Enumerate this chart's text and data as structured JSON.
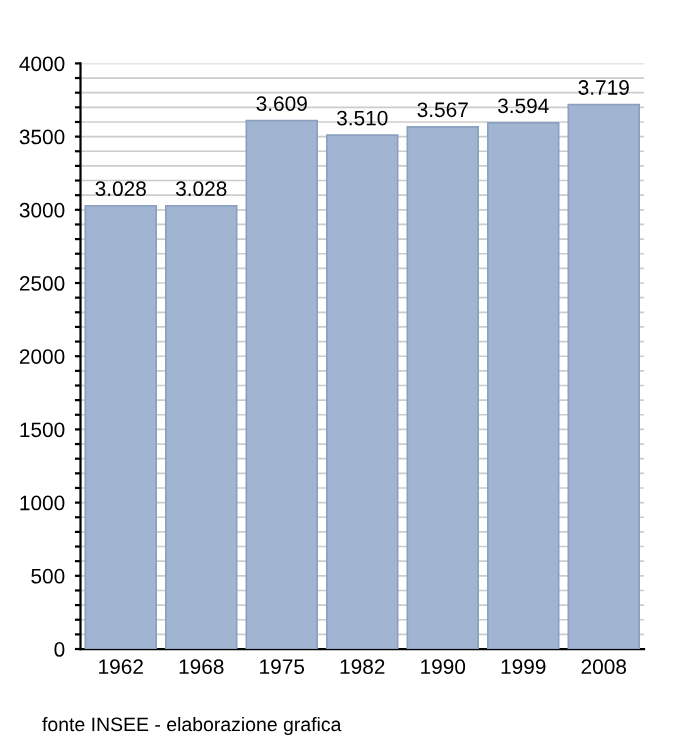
{
  "chart_data": {
    "type": "bar",
    "categories": [
      "1962",
      "1968",
      "1975",
      "1982",
      "1990",
      "1999",
      "2008"
    ],
    "values": [
      3028,
      3028,
      3609,
      3510,
      3567,
      3594,
      3719
    ],
    "value_labels": [
      "3.028",
      "3.028",
      "3.609",
      "3.510",
      "3.567",
      "3.594",
      "3.719"
    ],
    "color": "#a1b5d2",
    "ylim": [
      0,
      4000
    ],
    "yticks": [
      0,
      {
        "value": 100,
        "label": null
      },
      {
        "value": 200,
        "label": null
      },
      {
        "value": 300,
        "label": null
      },
      {
        "value": 400,
        "label": null
      },
      500,
      {
        "value": 600,
        "label": null
      },
      {
        "value": 700,
        "label": null
      },
      {
        "value": 800,
        "label": null
      },
      {
        "value": 900,
        "label": null
      },
      1000,
      {
        "value": 1100,
        "label": null
      },
      {
        "value": 1200,
        "label": null
      },
      {
        "value": 1300,
        "label": null
      },
      {
        "value": 1400,
        "label": null
      },
      1500,
      {
        "value": 1600,
        "label": null
      },
      {
        "value": 1700,
        "label": null
      },
      {
        "value": 1800,
        "label": null
      },
      {
        "value": 1900,
        "label": null
      },
      2000,
      {
        "value": 2100,
        "label": null
      },
      {
        "value": 2200,
        "label": null
      },
      {
        "value": 2300,
        "label": null
      },
      {
        "value": 2400,
        "label": null
      },
      2500,
      {
        "value": 2600,
        "label": null
      },
      {
        "value": 2700,
        "label": null
      },
      {
        "value": 2800,
        "label": null
      },
      {
        "value": 2900,
        "label": null
      },
      3000,
      {
        "value": 3100,
        "label": null
      },
      {
        "value": 3200,
        "label": null
      },
      {
        "value": 3300,
        "label": null
      },
      {
        "value": 3400,
        "label": null
      },
      3500,
      {
        "value": 3600,
        "label": null
      },
      {
        "value": 3700,
        "label": null
      },
      {
        "value": 3800,
        "label": null
      },
      {
        "value": 3900,
        "label": null
      },
      4000
    ],
    "grid": "y",
    "annotations": [
      "fonte INSEE - elaborazione grafica"
    ]
  }
}
